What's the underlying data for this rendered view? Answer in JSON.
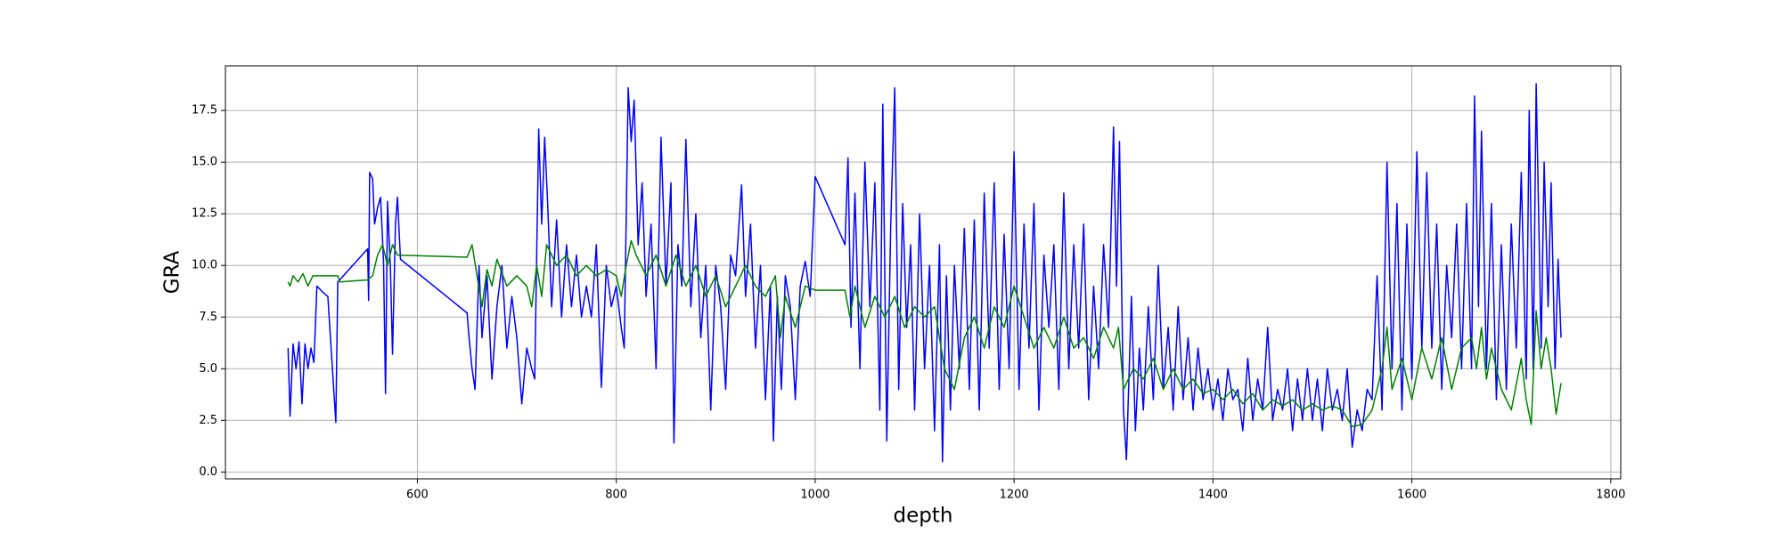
{
  "chart_data": {
    "type": "line",
    "x_label": "depth",
    "y_label": "GRA",
    "xlim": [
      407,
      1810
    ],
    "ylim": [
      -0.33,
      19.66
    ],
    "xticks": [
      600,
      800,
      1000,
      1200,
      1400,
      1600,
      1800
    ],
    "yticks": [
      {
        "value": 0,
        "label": "0.0"
      },
      2.5,
      {
        "value": 5,
        "label": "5.0"
      },
      7.5,
      {
        "value": 10,
        "label": "10.0"
      },
      12.5,
      {
        "value": 15,
        "label": "15.0"
      },
      17.5
    ],
    "grid": true,
    "series": [
      {
        "color": "#0000ff",
        "x": [
          470,
          472,
          475,
          478,
          481,
          484,
          487,
          490,
          493,
          496,
          499,
          505,
          510,
          518,
          520,
          550,
          551,
          552,
          555,
          557,
          560,
          563,
          566,
          568,
          570,
          573,
          575,
          578,
          580,
          583,
          650,
          652,
          655,
          658,
          662,
          665,
          670,
          675,
          680,
          685,
          690,
          695,
          700,
          705,
          710,
          715,
          718,
          722,
          725,
          728,
          731,
          735,
          740,
          745,
          750,
          755,
          760,
          765,
          770,
          775,
          780,
          785,
          790,
          795,
          800,
          805,
          808,
          812,
          815,
          818,
          822,
          826,
          830,
          835,
          840,
          845,
          850,
          855,
          858,
          862,
          866,
          870,
          875,
          880,
          885,
          890,
          895,
          900,
          905,
          910,
          915,
          920,
          926,
          930,
          935,
          940,
          945,
          950,
          955,
          958,
          962,
          966,
          970,
          975,
          980,
          985,
          990,
          995,
          1000,
          1030,
          1033,
          1036,
          1040,
          1045,
          1050,
          1055,
          1060,
          1065,
          1068,
          1072,
          1076,
          1080,
          1084,
          1088,
          1092,
          1096,
          1100,
          1105,
          1110,
          1115,
          1120,
          1125,
          1128,
          1132,
          1136,
          1140,
          1145,
          1150,
          1155,
          1160,
          1165,
          1170,
          1175,
          1180,
          1185,
          1190,
          1195,
          1200,
          1205,
          1210,
          1215,
          1220,
          1225,
          1230,
          1235,
          1240,
          1245,
          1250,
          1255,
          1260,
          1265,
          1270,
          1275,
          1280,
          1285,
          1290,
          1295,
          1300,
          1303,
          1306,
          1310,
          1313,
          1318,
          1322,
          1326,
          1330,
          1335,
          1340,
          1345,
          1350,
          1355,
          1360,
          1365,
          1370,
          1375,
          1380,
          1385,
          1390,
          1395,
          1400,
          1405,
          1410,
          1415,
          1420,
          1425,
          1430,
          1435,
          1440,
          1445,
          1450,
          1455,
          1460,
          1465,
          1470,
          1475,
          1480,
          1485,
          1490,
          1495,
          1500,
          1505,
          1510,
          1515,
          1520,
          1525,
          1530,
          1535,
          1540,
          1545,
          1550,
          1555,
          1560,
          1565,
          1570,
          1575,
          1580,
          1585,
          1590,
          1595,
          1600,
          1605,
          1610,
          1615,
          1620,
          1625,
          1630,
          1635,
          1640,
          1645,
          1650,
          1655,
          1660,
          1663,
          1667,
          1670,
          1675,
          1680,
          1685,
          1690,
          1695,
          1700,
          1705,
          1710,
          1715,
          1718,
          1722,
          1725,
          1730,
          1733,
          1737,
          1740,
          1744,
          1747,
          1750
        ],
        "values": [
          6.0,
          2.7,
          6.2,
          5.0,
          6.3,
          3.3,
          6.2,
          5.0,
          6.0,
          5.3,
          9.0,
          8.7,
          8.5,
          2.4,
          9.2,
          10.8,
          8.3,
          14.5,
          14.2,
          12.0,
          12.8,
          13.3,
          10.2,
          3.8,
          13.1,
          9.7,
          5.7,
          12.0,
          13.3,
          10.3,
          7.7,
          6.5,
          5.0,
          4.0,
          10.0,
          6.5,
          9.5,
          4.5,
          8.0,
          10.0,
          6.0,
          8.5,
          6.5,
          3.3,
          6.0,
          5.0,
          4.5,
          16.6,
          12.0,
          16.2,
          13.0,
          8.0,
          12.2,
          7.5,
          11.0,
          8.0,
          10.5,
          7.5,
          9.0,
          7.5,
          11.0,
          4.1,
          10.0,
          8.0,
          9.0,
          7.0,
          6.0,
          18.6,
          16.0,
          18.0,
          11.0,
          14.0,
          8.5,
          12.0,
          5.0,
          16.2,
          9.0,
          14.0,
          1.4,
          11.0,
          9.0,
          16.1,
          8.0,
          12.5,
          6.5,
          10.0,
          3.0,
          10.0,
          8.0,
          4.0,
          10.5,
          9.5,
          13.9,
          8.5,
          12.0,
          6.0,
          10.0,
          3.5,
          9.0,
          1.5,
          8.5,
          4.0,
          9.5,
          8.0,
          3.5,
          9.0,
          10.2,
          8.5,
          14.3,
          11.0,
          15.2,
          7.0,
          13.5,
          5.0,
          15.0,
          8.0,
          14.0,
          3.0,
          17.8,
          1.5,
          12.0,
          18.6,
          4.0,
          13.0,
          7.0,
          11.0,
          3.0,
          12.5,
          5.0,
          10.0,
          2.0,
          11.0,
          0.5,
          9.5,
          3.0,
          10.0,
          5.0,
          11.8,
          4.0,
          12.2,
          3.0,
          13.5,
          6.0,
          14.0,
          4.0,
          11.5,
          5.0,
          15.5,
          4.0,
          12.0,
          6.0,
          13.0,
          3.0,
          10.5,
          7.0,
          11.0,
          4.0,
          13.5,
          5.0,
          11.0,
          6.0,
          12.0,
          3.5,
          9.0,
          5.0,
          11.0,
          7.0,
          16.7,
          9.0,
          16.0,
          3.0,
          0.6,
          8.5,
          2.0,
          6.0,
          3.0,
          8.0,
          3.5,
          10.0,
          4.0,
          7.0,
          3.0,
          8.0,
          3.5,
          6.5,
          3.0,
          6.0,
          3.5,
          5.0,
          3.0,
          4.5,
          2.5,
          5.0,
          3.5,
          4.0,
          2.0,
          5.5,
          2.5,
          4.5,
          3.0,
          7.0,
          2.5,
          4.0,
          3.0,
          5.0,
          2.0,
          4.5,
          2.5,
          5.0,
          2.5,
          4.5,
          2.0,
          5.0,
          3.0,
          4.0,
          2.5,
          5.0,
          1.2,
          3.0,
          2.0,
          4.0,
          3.5,
          9.5,
          3.0,
          15.0,
          5.0,
          13.0,
          3.0,
          12.0,
          4.5,
          15.5,
          6.0,
          14.5,
          6.0,
          12.0,
          4.0,
          10.0,
          6.5,
          12.0,
          5.0,
          13.0,
          5.0,
          18.2,
          8.0,
          16.5,
          5.0,
          13.0,
          3.5,
          11.0,
          4.0,
          12.0,
          6.0,
          14.5,
          4.5,
          17.5,
          5.0,
          18.8,
          6.0,
          15.0,
          8.0,
          14.0,
          5.0,
          10.3,
          6.5
        ]
      },
      {
        "color": "#008000",
        "x": [
          470,
          472,
          475,
          480,
          485,
          490,
          495,
          520,
          522,
          550,
          555,
          560,
          565,
          570,
          575,
          580,
          650,
          655,
          660,
          665,
          670,
          675,
          680,
          690,
          700,
          710,
          715,
          720,
          725,
          730,
          740,
          750,
          760,
          770,
          780,
          790,
          800,
          805,
          810,
          815,
          820,
          830,
          840,
          850,
          860,
          870,
          880,
          890,
          900,
          910,
          920,
          930,
          940,
          950,
          960,
          965,
          970,
          980,
          990,
          1000,
          1030,
          1035,
          1040,
          1050,
          1060,
          1070,
          1080,
          1090,
          1100,
          1110,
          1120,
          1130,
          1140,
          1150,
          1160,
          1170,
          1180,
          1190,
          1200,
          1210,
          1220,
          1230,
          1240,
          1250,
          1260,
          1270,
          1280,
          1290,
          1300,
          1305,
          1310,
          1320,
          1330,
          1340,
          1350,
          1360,
          1370,
          1380,
          1390,
          1400,
          1410,
          1420,
          1430,
          1440,
          1450,
          1460,
          1470,
          1480,
          1490,
          1500,
          1510,
          1520,
          1530,
          1540,
          1550,
          1560,
          1570,
          1575,
          1580,
          1590,
          1600,
          1610,
          1620,
          1630,
          1640,
          1650,
          1660,
          1665,
          1670,
          1675,
          1680,
          1690,
          1700,
          1710,
          1715,
          1720,
          1725,
          1730,
          1735,
          1740,
          1745,
          1750
        ],
        "values": [
          9.2,
          9.0,
          9.5,
          9.2,
          9.6,
          9.0,
          9.5,
          9.5,
          9.2,
          9.3,
          9.5,
          10.5,
          11.0,
          10.0,
          11.0,
          10.5,
          10.4,
          11.0,
          9.5,
          8.0,
          9.8,
          9.0,
          10.3,
          9.0,
          9.5,
          9.0,
          8.0,
          10.0,
          8.5,
          11.0,
          10.0,
          10.5,
          9.5,
          10.0,
          9.5,
          9.8,
          9.5,
          8.5,
          10.0,
          11.2,
          10.5,
          9.5,
          10.5,
          9.0,
          10.5,
          9.0,
          10.0,
          8.5,
          9.5,
          8.0,
          9.0,
          10.0,
          9.0,
          8.5,
          9.5,
          6.5,
          8.5,
          7.0,
          9.0,
          8.8,
          8.8,
          7.5,
          9.0,
          7.0,
          8.5,
          7.5,
          8.5,
          7.0,
          8.0,
          7.5,
          8.0,
          5.0,
          4.0,
          6.5,
          7.5,
          6.0,
          8.0,
          7.0,
          9.0,
          7.5,
          6.0,
          7.0,
          6.0,
          7.5,
          6.0,
          6.5,
          5.5,
          7.0,
          6.0,
          7.0,
          4.0,
          5.0,
          4.5,
          5.5,
          4.0,
          5.0,
          4.0,
          4.5,
          3.8,
          4.0,
          3.5,
          4.0,
          3.3,
          3.8,
          3.0,
          3.5,
          3.2,
          3.5,
          3.0,
          3.3,
          3.0,
          3.2,
          3.0,
          2.2,
          2.3,
          3.0,
          5.0,
          7.0,
          4.0,
          5.5,
          3.5,
          6.0,
          4.5,
          6.5,
          4.0,
          6.0,
          6.5,
          5.0,
          7.0,
          4.5,
          6.0,
          4.0,
          3.0,
          5.5,
          3.5,
          2.3,
          7.8,
          5.0,
          6.5,
          5.0,
          2.8,
          4.3
        ]
      }
    ]
  }
}
